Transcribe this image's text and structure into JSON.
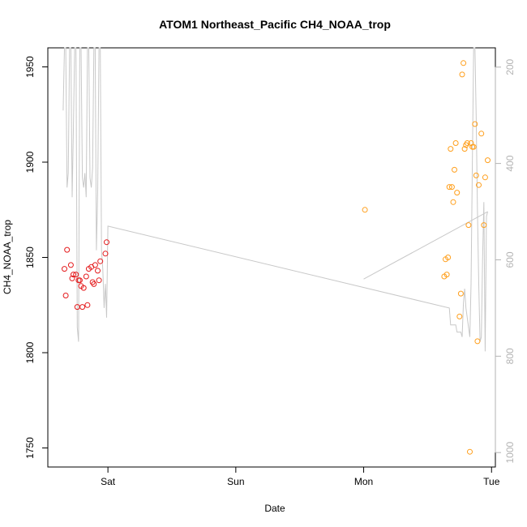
{
  "chart_data": {
    "type": "scatter",
    "title": "ATOM1 Northeast_Pacific CH4_NOAA_trop",
    "xlabel": "Date",
    "ylabel": "CH4_NOAA_trop",
    "xlim": [
      -0.47,
      3.03
    ],
    "ylim": [
      1740,
      1960
    ],
    "x_ticks": [
      {
        "value": 0,
        "label": "Sat"
      },
      {
        "value": 1,
        "label": "Sun"
      },
      {
        "value": 2,
        "label": "Mon"
      },
      {
        "value": 3,
        "label": "Tue"
      }
    ],
    "y_ticks": [
      1750,
      1800,
      1850,
      1900,
      1950
    ],
    "y2_lim": [
      1030,
      160
    ],
    "y2_ticks": [
      200,
      400,
      600,
      800,
      1000
    ],
    "grid": false,
    "colors": {
      "series_red": "#e41a1c",
      "series_orange": "#ff9f1c",
      "pressure_line": "#c8c8c8",
      "secondary_axis": "#b3b3b3"
    },
    "series": [
      {
        "color": "#e41a1c",
        "points": [
          [
            -0.34,
            1844
          ],
          [
            -0.33,
            1830
          ],
          [
            -0.32,
            1854
          ],
          [
            -0.29,
            1846
          ],
          [
            -0.28,
            1839
          ],
          [
            -0.27,
            1841
          ],
          [
            -0.25,
            1841
          ],
          [
            -0.24,
            1824
          ],
          [
            -0.23,
            1838
          ],
          [
            -0.22,
            1838
          ],
          [
            -0.21,
            1835
          ],
          [
            -0.2,
            1824
          ],
          [
            -0.19,
            1834
          ],
          [
            -0.17,
            1840
          ],
          [
            -0.16,
            1825
          ],
          [
            -0.15,
            1844
          ],
          [
            -0.13,
            1845
          ],
          [
            -0.12,
            1837
          ],
          [
            -0.11,
            1836
          ],
          [
            -0.1,
            1846
          ],
          [
            -0.08,
            1843
          ],
          [
            -0.07,
            1838
          ],
          [
            -0.06,
            1848
          ],
          [
            -0.02,
            1852
          ],
          [
            -0.01,
            1858
          ]
        ]
      },
      {
        "color": "#ff9f1c",
        "points": [
          [
            2.01,
            1875
          ],
          [
            2.63,
            1840
          ],
          [
            2.64,
            1849
          ],
          [
            2.65,
            1841
          ],
          [
            2.66,
            1850
          ],
          [
            2.67,
            1887
          ],
          [
            2.68,
            1907
          ],
          [
            2.69,
            1887
          ],
          [
            2.7,
            1879
          ],
          [
            2.71,
            1896
          ],
          [
            2.72,
            1910
          ],
          [
            2.73,
            1884
          ],
          [
            2.75,
            1819
          ],
          [
            2.76,
            1831
          ],
          [
            2.77,
            1946
          ],
          [
            2.78,
            1952
          ],
          [
            2.79,
            1907
          ],
          [
            2.8,
            1909
          ],
          [
            2.81,
            1910
          ],
          [
            2.82,
            1867
          ],
          [
            2.83,
            1748
          ],
          [
            2.84,
            1910
          ],
          [
            2.85,
            1908
          ],
          [
            2.86,
            1908
          ],
          [
            2.87,
            1920
          ],
          [
            2.88,
            1893
          ],
          [
            2.89,
            1806
          ],
          [
            2.9,
            1888
          ],
          [
            2.92,
            1915
          ],
          [
            2.94,
            1867
          ],
          [
            2.95,
            1892
          ],
          [
            2.97,
            1901
          ]
        ]
      }
    ],
    "secondary_line": {
      "color": "#c8c8c8",
      "points": [
        [
          -0.35,
          290
        ],
        [
          -0.34,
          160
        ],
        [
          -0.33,
          160
        ],
        [
          -0.32,
          450
        ],
        [
          -0.31,
          420
        ],
        [
          -0.3,
          160
        ],
        [
          -0.29,
          160
        ],
        [
          -0.28,
          470
        ],
        [
          -0.27,
          330
        ],
        [
          -0.26,
          160
        ],
        [
          -0.25,
          160
        ],
        [
          -0.24,
          740
        ],
        [
          -0.23,
          770
        ],
        [
          -0.22,
          160
        ],
        [
          -0.21,
          160
        ],
        [
          -0.2,
          430
        ],
        [
          -0.19,
          450
        ],
        [
          -0.18,
          420
        ],
        [
          -0.17,
          470
        ],
        [
          -0.16,
          160
        ],
        [
          -0.15,
          160
        ],
        [
          -0.14,
          430
        ],
        [
          -0.13,
          450
        ],
        [
          -0.12,
          410
        ],
        [
          -0.11,
          160
        ],
        [
          -0.1,
          160
        ],
        [
          -0.09,
          580
        ],
        [
          -0.08,
          460
        ],
        [
          -0.07,
          160
        ],
        [
          -0.06,
          160
        ],
        [
          -0.05,
          580
        ],
        [
          -0.04,
          620
        ],
        [
          -0.03,
          700
        ],
        [
          -0.02,
          650
        ],
        [
          -0.01,
          720
        ],
        [
          0.0,
          530
        ],
        [
          2.67,
          700
        ],
        [
          2.68,
          735
        ],
        [
          2.72,
          735
        ],
        [
          2.73,
          750
        ],
        [
          2.76,
          750
        ],
        [
          2.77,
          760
        ],
        [
          2.78,
          690
        ],
        [
          2.79,
          660
        ],
        [
          2.8,
          700
        ],
        [
          2.81,
          720
        ],
        [
          2.82,
          740
        ],
        [
          2.83,
          760
        ],
        [
          2.84,
          650
        ],
        [
          2.85,
          400
        ],
        [
          2.86,
          160
        ],
        [
          2.87,
          160
        ],
        [
          2.88,
          300
        ],
        [
          2.89,
          500
        ],
        [
          2.9,
          650
        ],
        [
          2.91,
          770
        ],
        [
          2.92,
          760
        ],
        [
          2.93,
          600
        ],
        [
          2.94,
          480
        ],
        [
          2.95,
          790
        ],
        [
          2.96,
          510
        ],
        [
          2.97,
          500
        ]
      ]
    },
    "connector_line": [
      [
        2.0,
        640
      ],
      [
        2.97,
        500
      ]
    ]
  }
}
